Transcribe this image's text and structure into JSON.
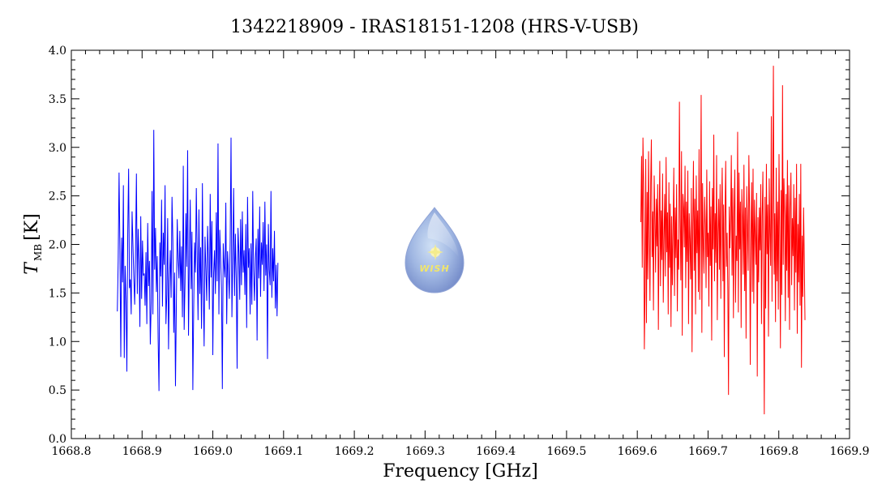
{
  "chart_data": {
    "type": "line",
    "title": "1342218909 - IRAS18151-1208 (HRS-V-USB)",
    "xlabel": "Frequency [GHz]",
    "ylabel": {
      "symbol": "T",
      "subscript": "MB",
      "unit": "[K]"
    },
    "xlim": [
      1668.8,
      1669.9
    ],
    "ylim": [
      0.0,
      4.0
    ],
    "xticks": [
      "1668.8",
      "1668.9",
      "1669.0",
      "1669.1",
      "1669.2",
      "1669.3",
      "1669.4",
      "1669.5",
      "1669.6",
      "1669.7",
      "1669.8",
      "1669.9"
    ],
    "yticks": [
      "0.0",
      "0.5",
      "1.0",
      "1.5",
      "2.0",
      "2.5",
      "3.0",
      "3.5",
      "4.0"
    ],
    "grid": false,
    "series": [
      {
        "color": "#0000ff",
        "x_start": 1668.865,
        "x_end": 1669.092,
        "y": [
          1.31,
          1.83,
          2.74,
          1.95,
          0.84,
          2.07,
          1.61,
          2.61,
          0.83,
          1.78,
          1.42,
          0.69,
          2.11,
          2.78,
          1.55,
          1.64,
          1.28,
          2.34,
          2.0,
          1.65,
          1.38,
          1.94,
          2.73,
          1.49,
          2.16,
          1.82,
          1.15,
          2.29,
          1.44,
          2.04,
          1.68,
          1.7,
          1.37,
          1.92,
          1.18,
          2.22,
          1.57,
          1.83,
          0.97,
          1.39,
          2.55,
          1.28,
          3.18,
          1.74,
          2.17,
          1.51,
          1.88,
          1.03,
          0.49,
          2.02,
          1.67,
          2.46,
          1.36,
          2.12,
          1.79,
          2.61,
          1.18,
          1.48,
          2.27,
          0.92,
          1.62,
          1.94,
          1.45,
          2.49,
          2.03,
          1.09,
          1.71,
          0.54,
          1.38,
          2.26,
          1.86,
          1.65,
          2.14,
          1.52,
          1.98,
          1.25,
          2.81,
          1.12,
          1.61,
          2.32,
          1.77,
          2.97,
          1.06,
          1.84,
          2.46,
          1.54,
          2.13,
          0.5,
          1.36,
          2.02,
          1.71,
          2.58,
          1.89,
          1.22,
          2.36,
          1.49,
          1.97,
          1.13,
          2.63,
          1.56,
          0.95,
          2.08,
          1.74,
          1.42,
          2.19,
          1.82,
          1.33,
          2.52,
          1.66,
          2.24,
          0.86,
          1.71,
          1.94,
          1.49,
          2.33,
          1.62,
          3.04,
          1.28,
          2.15,
          1.87,
          1.54,
          0.51,
          2.01,
          1.78,
          1.66,
          2.43,
          1.18,
          1.93,
          1.72,
          1.44,
          2.02,
          3.1,
          1.25,
          1.86,
          2.58,
          1.47,
          2.11,
          1.65,
          0.72,
          2.17,
          1.92,
          1.43,
          2.26,
          1.58,
          2.34,
          1.71,
          1.94,
          1.48,
          2.21,
          1.14,
          2.49,
          1.76,
          1.96,
          1.28,
          2.01,
          1.38,
          2.55,
          1.73,
          1.42,
          1.86,
          2.06,
          1.01,
          2.16,
          1.65,
          2.39,
          1.46,
          2.02,
          1.79,
          2.23,
          1.52,
          2.44,
          1.68,
          2.0,
          0.82,
          2.21,
          1.74,
          1.58,
          2.55,
          1.45,
          1.96,
          1.62,
          2.14,
          1.34,
          1.79,
          1.26,
          1.81
        ]
      },
      {
        "color": "#ff0000",
        "x_start": 1669.605,
        "x_end": 1669.837,
        "y": [
          2.23,
          2.91,
          1.76,
          3.1,
          2.62,
          0.92,
          1.52,
          2.88,
          1.19,
          2.54,
          1.64,
          2.96,
          2.15,
          1.42,
          2.63,
          3.08,
          1.87,
          2.34,
          1.32,
          2.71,
          2.28,
          1.71,
          2.47,
          1.98,
          2.62,
          1.12,
          2.18,
          2.86,
          1.57,
          2.35,
          1.84,
          2.73,
          1.4,
          2.06,
          2.52,
          1.67,
          2.9,
          1.92,
          2.33,
          1.28,
          2.64,
          1.76,
          2.42,
          1.15,
          2.29,
          1.58,
          2.16,
          2.79,
          1.47,
          2.38,
          1.86,
          2.62,
          1.31,
          2.05,
          1.74,
          3.47,
          2.28,
          1.63,
          2.96,
          1.06,
          2.52,
          2.37,
          1.97,
          2.81,
          1.55,
          2.44,
          1.82,
          2.76,
          1.18,
          2.32,
          2.06,
          1.64,
          2.58,
          0.89,
          2.19,
          2.86,
          1.73,
          2.47,
          1.28,
          2.71,
          1.91,
          2.35,
          1.51,
          2.98,
          1.43,
          2.24,
          3.54,
          1.09,
          2.63,
          2.01,
          1.7,
          2.49,
          2.2,
          1.55,
          2.77,
          1.87,
          2.12,
          1.36,
          2.65,
          1.78,
          2.39,
          1.01,
          2.58,
          1.95,
          3.13,
          1.62,
          2.32,
          1.81,
          2.92,
          1.22,
          2.12,
          2.47,
          1.74,
          2.62,
          1.44,
          2.33,
          2.79,
          1.62,
          2.41,
          0.84,
          2.27,
          2.86,
          1.77,
          2.12,
          1.53,
          0.45,
          2.39,
          1.96,
          2.26,
          2.92,
          1.68,
          2.58,
          1.24,
          2.33,
          2.77,
          1.4,
          2.09,
          1.83,
          3.16,
          1.3,
          2.74,
          1.95,
          2.44,
          1.14,
          2.57,
          2.27,
          1.69,
          2.82,
          1.52,
          2.38,
          1.03,
          2.6,
          2.16,
          1.73,
          2.92,
          2.35,
          0.76,
          2.05,
          2.64,
          1.51,
          2.78,
          1.39,
          2.46,
          2.11,
          1.79,
          2.53,
          0.64,
          2.28,
          1.61,
          2.38,
          1.94,
          2.62,
          1.18,
          2.29,
          2.75,
          1.55,
          0.25,
          2.49,
          1.34,
          2.83,
          1.9,
          2.41,
          1.05,
          2.68,
          2.12,
          1.78,
          3.32,
          1.41,
          2.55,
          3.84,
          1.69,
          2.32,
          1.2,
          2.79,
          1.62,
          2.44,
          1.33,
          2.93,
          2.05,
          0.93,
          2.56,
          1.48,
          3.64,
          1.79,
          2.68,
          2.31,
          1.21,
          2.52,
          1.73,
          2.87,
          1.45,
          2.61,
          1.12,
          2.38,
          2.74,
          1.58,
          2.27,
          1.88,
          2.62,
          1.32,
          2.48,
          1.71,
          2.83,
          1.08,
          2.21,
          1.61,
          2.52,
          1.37,
          2.83,
          0.73,
          2.09,
          1.46,
          2.38,
          1.86,
          1.22
        ]
      }
    ]
  }
}
